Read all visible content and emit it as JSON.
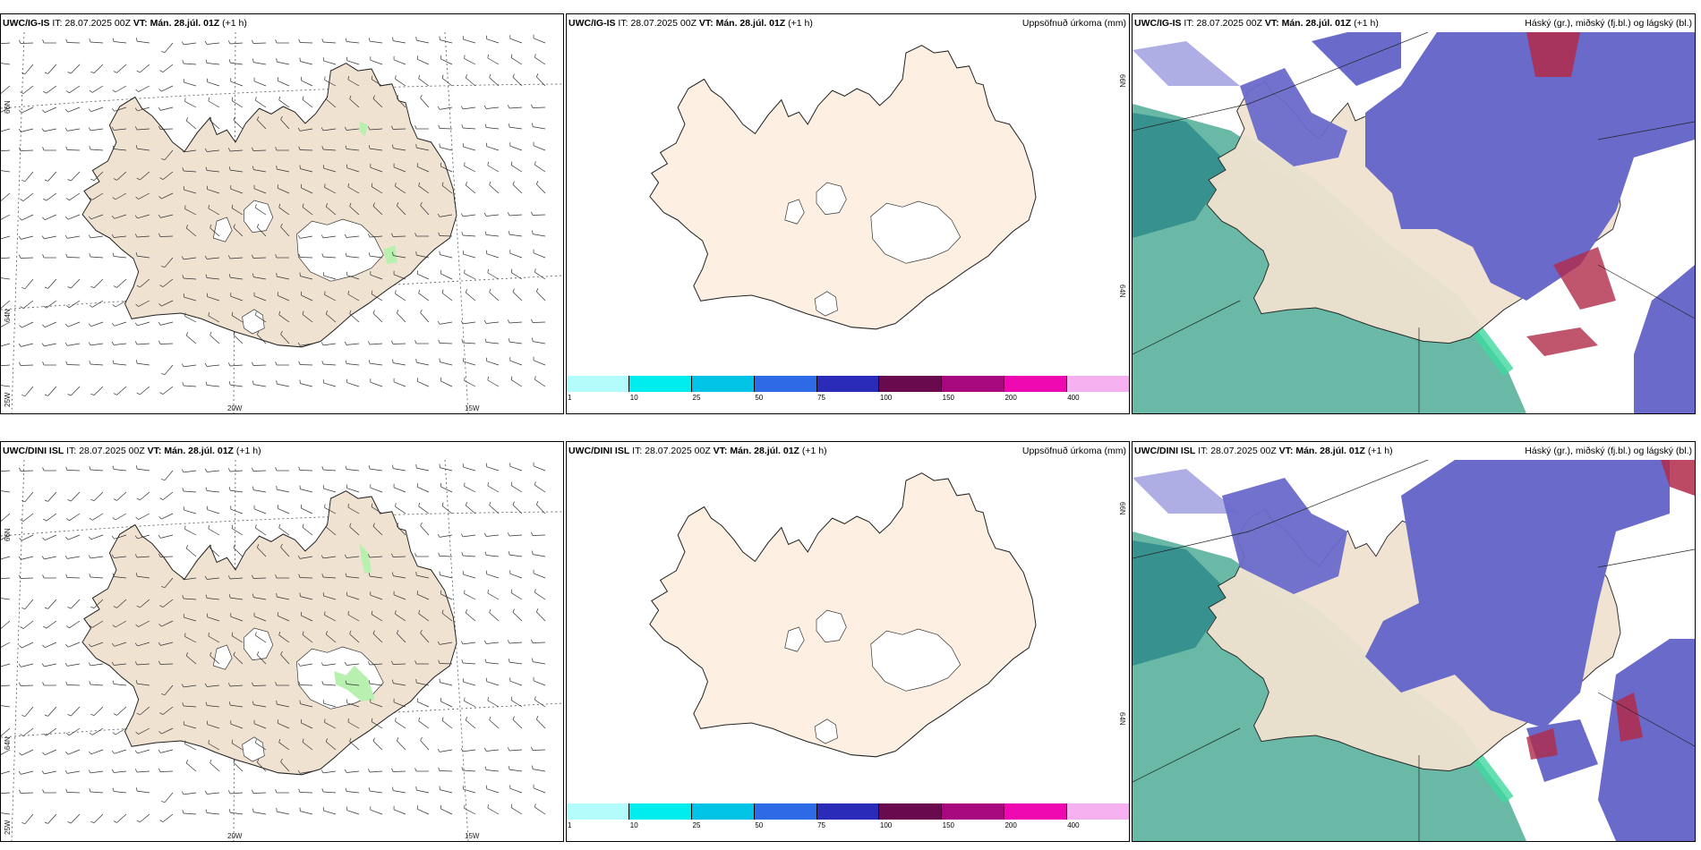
{
  "rows": [
    {
      "row_id": "top",
      "panels": [
        {
          "model": "UWC/IG-IS",
          "it_label": "IT:",
          "it": "28.07.2025 00Z",
          "vt_label": "VT:",
          "vt": "Mán. 28.júl. 01Z",
          "lead": "(+1 h)",
          "right_title": "",
          "type": "wind"
        },
        {
          "model": "UWC/IG-IS",
          "it_label": "IT:",
          "it": "28.07.2025 00Z",
          "vt_label": "VT:",
          "vt": "Mán. 28.júl. 01Z",
          "lead": "(+1 h)",
          "right_title": "Uppsöfnuð úrkoma (mm)",
          "type": "precip"
        },
        {
          "model": "UWC/IG-IS",
          "it_label": "IT:",
          "it": "28.07.2025 00Z",
          "vt_label": "VT:",
          "vt": "Mán. 28.júl. 01Z",
          "lead": "(+1 h)",
          "right_title": "Háský (gr.), miðský (fj.bl.) og lágský (bl.)",
          "type": "cloud"
        }
      ]
    },
    {
      "row_id": "bottom",
      "panels": [
        {
          "model": "UWC/DINI ISL",
          "it_label": "IT:",
          "it": "28.07.2025 00Z",
          "vt_label": "VT:",
          "vt": "Mán. 28.júl. 01Z",
          "lead": "(+1 h)",
          "right_title": "",
          "type": "wind"
        },
        {
          "model": "UWC/DINI ISL",
          "it_label": "IT:",
          "it": "28.07.2025 00Z",
          "vt_label": "VT:",
          "vt": "Mán. 28.júl. 01Z",
          "lead": "(+1 h)",
          "right_title": "Uppsöfnuð úrkoma (mm)",
          "type": "precip"
        },
        {
          "model": "UWC/DINI ISL",
          "it_label": "IT:",
          "it": "28.07.2025 00Z",
          "vt_label": "VT:",
          "vt": "Mán. 28.júl. 01Z",
          "lead": "(+1 h)",
          "right_title": "Háský (gr.), miðský (fj.bl.) og lágský (bl.)",
          "type": "cloud"
        }
      ]
    }
  ],
  "wind_axis": {
    "lat_labels": [
      "66N",
      "64N"
    ],
    "lon_labels": [
      "25W",
      "20W",
      "15W"
    ]
  },
  "precip_axis": {
    "lat_labels": [
      "66N",
      "64N"
    ]
  },
  "precip_colorbar": {
    "ticks": [
      "1",
      "10",
      "25",
      "50",
      "75",
      "100",
      "150",
      "200",
      "400"
    ],
    "colors": [
      "#b4fbfb",
      "#00eded",
      "#00c3e6",
      "#2e6ae6",
      "#2a2bb8",
      "#6a0a4e",
      "#a8087e",
      "#ee08b0",
      "#f5b0f0"
    ]
  },
  "colors": {
    "land": "#f0e2d0",
    "land_precip": "#fdf0e2",
    "sea_green": "#6ab9a6",
    "sea_teal": "#2e8b8b",
    "cloud_mid": "#6a6acb",
    "cloud_high": "#b02a4a",
    "coast_green": "#40d8a0",
    "precip_green": "#b8f0b0"
  }
}
